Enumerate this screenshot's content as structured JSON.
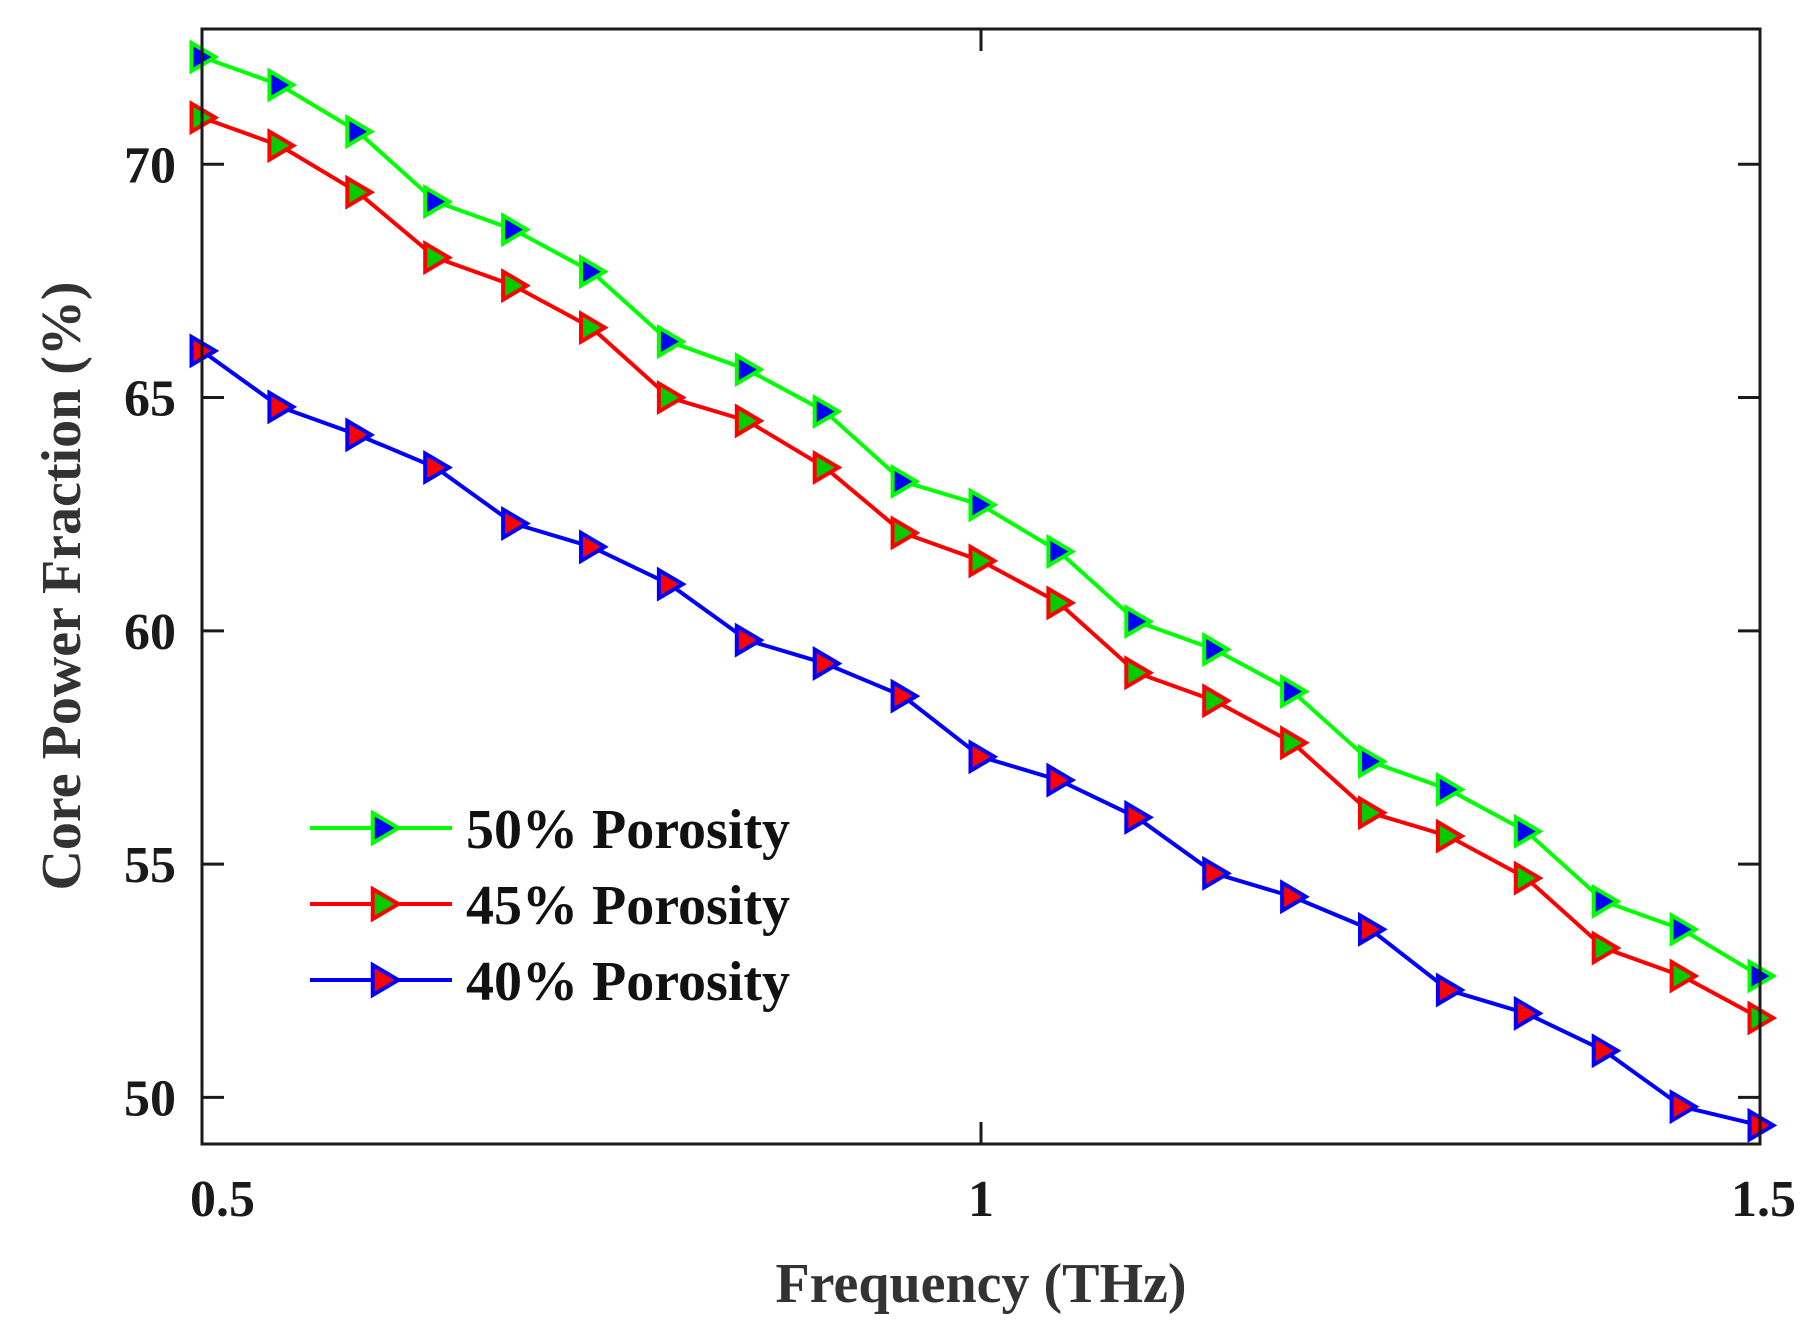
{
  "chart_data": {
    "type": "line",
    "title": "",
    "xlabel": "Frequency (THz)",
    "ylabel": "Core Power Fraction (%)",
    "xlim": [
      0.5,
      1.5
    ],
    "ylim": [
      49,
      72.9
    ],
    "x_ticks": [
      0.5,
      1,
      1.5
    ],
    "x_tick_labels": [
      "0.5",
      "1",
      "1.5"
    ],
    "y_ticks": [
      50,
      55,
      60,
      65,
      70
    ],
    "y_tick_labels": [
      "50",
      "55",
      "60",
      "65",
      "70"
    ],
    "grid": false,
    "legend_position": "bottom-left",
    "x": [
      0.5,
      0.55,
      0.6,
      0.65,
      0.7,
      0.75,
      0.8,
      0.85,
      0.9,
      0.95,
      1.0,
      1.05,
      1.1,
      1.15,
      1.2,
      1.25,
      1.3,
      1.35,
      1.4,
      1.45,
      1.5
    ],
    "series": [
      {
        "name": "50% Porosity",
        "line_color": "#00ff00",
        "marker_fill": "#0000ff",
        "values": [
          72.3,
          71.7,
          70.7,
          69.2,
          68.6,
          67.7,
          66.2,
          65.6,
          64.7,
          63.2,
          62.7,
          61.7,
          60.2,
          59.6,
          58.7,
          57.2,
          56.6,
          55.7,
          54.2,
          53.6,
          52.6
        ]
      },
      {
        "name": "45% Porosity",
        "line_color": "#ff0000",
        "marker_fill": "#00cc00",
        "values": [
          71.0,
          70.4,
          69.4,
          68.0,
          67.4,
          66.5,
          65.0,
          64.5,
          63.5,
          62.1,
          61.5,
          60.6,
          59.1,
          58.5,
          57.6,
          56.1,
          55.6,
          54.7,
          53.2,
          52.6,
          51.7
        ]
      },
      {
        "name": "40% Porosity",
        "line_color": "#0000ff",
        "marker_fill": "#ff0000",
        "values": [
          66.0,
          64.8,
          64.2,
          63.5,
          62.3,
          61.8,
          61.0,
          59.8,
          59.3,
          58.6,
          57.3,
          56.8,
          56.0,
          54.8,
          54.3,
          53.6,
          52.3,
          51.8,
          51.0,
          49.8,
          49.4
        ]
      }
    ]
  }
}
